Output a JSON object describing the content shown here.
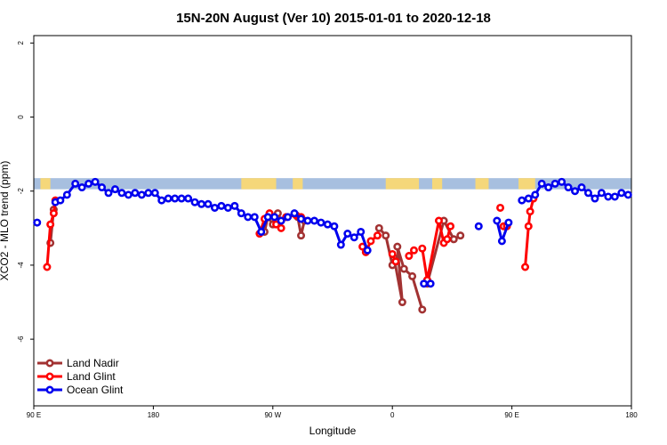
{
  "chart_data": {
    "type": "line",
    "title": "15N-20N August (Ver 10)   2015-01-01 to 2020-12-18",
    "xlabel": "Longitude",
    "ylabel": "XCO2 - MLO trend (ppm)",
    "xlim": [
      90,
      450
    ],
    "ylim": [
      -7.8,
      2.2
    ],
    "x_ticks": [
      {
        "value": 90,
        "label": "90 E"
      },
      {
        "value": 162,
        "label": "180"
      },
      {
        "value": 234,
        "label": "90 W"
      },
      {
        "value": 306,
        "label": "0"
      },
      {
        "value": 378,
        "label": "90 E"
      },
      {
        "value": 450,
        "label": "180"
      }
    ],
    "y_ticks": [
      {
        "value": 2,
        "label": "2"
      },
      {
        "value": 0,
        "label": "0"
      },
      {
        "value": -2,
        "label": "-2"
      },
      {
        "value": -4,
        "label": "-4"
      },
      {
        "value": -6,
        "label": "-6"
      }
    ],
    "grid": false,
    "legend_position": "bottom-left",
    "land_mask_band": {
      "y_range": [
        -1.65,
        -1.95
      ],
      "ocean_color": "#a7bfdf",
      "land_color": "#f5d77a",
      "land_segments_lon": [
        [
          94,
          100
        ],
        [
          215,
          236
        ],
        [
          246,
          252
        ],
        [
          302,
          322
        ],
        [
          330,
          336
        ],
        [
          356,
          364
        ],
        [
          382,
          392
        ]
      ]
    },
    "series": [
      {
        "name": "Land Nadir",
        "color": "#a23232",
        "segments": [
          [
            [
              100,
              -3.4
            ],
            [
              102,
              -2.5
            ]
          ],
          [
            [
              229,
              -3.1
            ],
            [
              231,
              -2.7
            ],
            [
              234,
              -2.9
            ],
            [
              237,
              -2.6
            ],
            [
              239,
              -2.8
            ]
          ],
          [
            [
              249,
              -2.7
            ],
            [
              251,
              -3.2
            ],
            [
              253,
              -2.8
            ]
          ],
          [
            [
              298,
              -3.0
            ],
            [
              302,
              -3.2
            ],
            [
              306,
              -4.0
            ],
            [
              307,
              -3.8
            ],
            [
              312,
              -5.0
            ],
            [
              309,
              -3.5
            ],
            [
              313,
              -4.1
            ],
            [
              318,
              -4.3
            ],
            [
              324,
              -5.2
            ]
          ],
          [
            [
              327,
              -4.5
            ],
            [
              337,
              -2.8
            ],
            [
              343,
              -3.3
            ],
            [
              347,
              -3.2
            ]
          ]
        ]
      },
      {
        "name": "Land Glint",
        "color": "#ff0000",
        "segments": [
          [
            [
              98,
              -4.05
            ],
            [
              100,
              -2.9
            ],
            [
              102,
              -2.6
            ],
            [
              103,
              -2.25
            ]
          ],
          [
            [
              226,
              -3.15
            ],
            [
              229,
              -2.75
            ],
            [
              232,
              -2.6
            ],
            [
              236,
              -2.9
            ],
            [
              239,
              -3.0
            ]
          ],
          [
            [
              242,
              -2.7
            ],
            [
              248,
              -2.65
            ],
            [
              251,
              -2.7
            ]
          ],
          [
            [
              288,
              -3.5
            ],
            [
              290,
              -3.65
            ],
            [
              293,
              -3.35
            ],
            [
              297,
              -3.2
            ]
          ],
          [
            [
              306,
              -3.7
            ],
            [
              308,
              -3.9
            ]
          ],
          [
            [
              316,
              -3.75
            ],
            [
              319,
              -3.6
            ]
          ],
          [
            [
              324,
              -3.55
            ],
            [
              327,
              -4.4
            ],
            [
              334,
              -2.8
            ],
            [
              337,
              -3.4
            ],
            [
              339,
              -3.3
            ],
            [
              341,
              -2.95
            ]
          ],
          [
            [
              371,
              -2.45
            ]
          ],
          [
            [
              373,
              -2.95
            ],
            [
              375,
              -2.95
            ]
          ],
          [
            [
              386,
              -4.05
            ],
            [
              388,
              -2.95
            ],
            [
              389,
              -2.55
            ],
            [
              391,
              -2.2
            ]
          ]
        ]
      },
      {
        "name": "Ocean Glint",
        "color": "#0000ee",
        "segments": [
          [
            [
              92,
              -2.85
            ]
          ],
          [
            [
              103,
              -2.3
            ],
            [
              106,
              -2.25
            ],
            [
              110,
              -2.1
            ],
            [
              115,
              -1.8
            ],
            [
              119,
              -1.9
            ],
            [
              123,
              -1.8
            ],
            [
              127,
              -1.75
            ],
            [
              131,
              -1.9
            ],
            [
              135,
              -2.05
            ],
            [
              139,
              -1.95
            ],
            [
              143,
              -2.05
            ],
            [
              147,
              -2.1
            ],
            [
              151,
              -2.05
            ],
            [
              155,
              -2.1
            ],
            [
              159,
              -2.05
            ],
            [
              163,
              -2.05
            ],
            [
              167,
              -2.25
            ],
            [
              171,
              -2.2
            ],
            [
              175,
              -2.2
            ],
            [
              179,
              -2.2
            ],
            [
              183,
              -2.2
            ],
            [
              187,
              -2.3
            ],
            [
              191,
              -2.35
            ],
            [
              195,
              -2.35
            ],
            [
              199,
              -2.45
            ],
            [
              203,
              -2.4
            ],
            [
              207,
              -2.45
            ],
            [
              211,
              -2.4
            ],
            [
              215,
              -2.6
            ],
            [
              219,
              -2.7
            ],
            [
              223,
              -2.7
            ],
            [
              227,
              -3.1
            ],
            [
              231,
              -2.7
            ],
            [
              235,
              -2.7
            ],
            [
              239,
              -2.8
            ],
            [
              243,
              -2.7
            ],
            [
              247,
              -2.6
            ],
            [
              251,
              -2.75
            ],
            [
              255,
              -2.8
            ],
            [
              259,
              -2.8
            ],
            [
              263,
              -2.85
            ],
            [
              267,
              -2.9
            ],
            [
              271,
              -2.95
            ],
            [
              275,
              -3.45
            ],
            [
              279,
              -3.15
            ],
            [
              283,
              -3.25
            ],
            [
              287,
              -3.1
            ],
            [
              291,
              -3.6
            ]
          ],
          [
            [
              325,
              -4.5
            ],
            [
              329,
              -4.5
            ]
          ],
          [
            [
              358,
              -2.95
            ]
          ],
          [
            [
              369,
              -2.8
            ],
            [
              372,
              -3.35
            ],
            [
              376,
              -2.85
            ]
          ],
          [
            [
              384,
              -2.25
            ],
            [
              388,
              -2.2
            ],
            [
              392,
              -2.1
            ],
            [
              396,
              -1.8
            ],
            [
              400,
              -1.9
            ],
            [
              404,
              -1.8
            ],
            [
              408,
              -1.75
            ],
            [
              412,
              -1.9
            ],
            [
              416,
              -2.0
            ],
            [
              420,
              -1.9
            ],
            [
              424,
              -2.05
            ],
            [
              428,
              -2.2
            ],
            [
              432,
              -2.05
            ],
            [
              436,
              -2.15
            ],
            [
              440,
              -2.15
            ],
            [
              444,
              -2.05
            ],
            [
              448,
              -2.1
            ]
          ]
        ]
      }
    ]
  }
}
